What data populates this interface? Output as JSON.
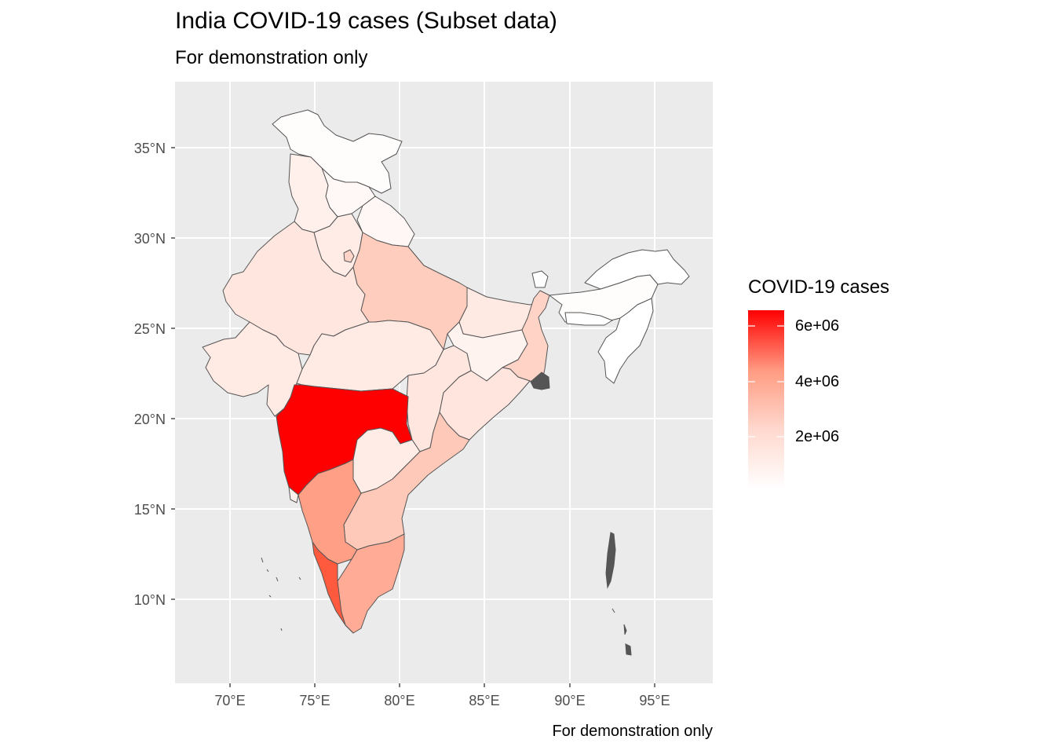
{
  "title": "India COVID-19 cases (Subset data)",
  "subtitle": "For demonstration only",
  "caption": "For demonstration only",
  "legend": {
    "title": "COVID-19 cases",
    "labels": [
      "6e+06",
      "4e+06",
      "2e+06"
    ],
    "low_color": "#ffffff",
    "high_color": "#ff0000"
  },
  "axes": {
    "x_ticks": [
      "70°E",
      "75°E",
      "80°E",
      "85°E",
      "90°E",
      "95°E"
    ],
    "y_ticks": [
      "35°N",
      "30°N",
      "25°N",
      "20°N",
      "15°N",
      "10°N"
    ],
    "panel_color": "#ebebeb",
    "grid_color": "#ffffff"
  },
  "chart_data": {
    "type": "choropleth",
    "title": "India COVID-19 cases (Subset data)",
    "subtitle": "For demonstration only",
    "xlim": [
      66.8,
      98.4
    ],
    "ylim": [
      5.2,
      38.6
    ],
    "fill_scale": {
      "name": "COVID-19 cases",
      "min": 0,
      "max": 6500000,
      "breaks": [
        2000000,
        4000000,
        6000000
      ]
    },
    "regions": [
      {
        "name": "Maharashtra",
        "value": 6400000
      },
      {
        "name": "Kerala",
        "value": 4800000
      },
      {
        "name": "Karnataka",
        "value": 2850000
      },
      {
        "name": "Tamil Nadu",
        "value": 2500000
      },
      {
        "name": "Andhra Pradesh",
        "value": 1950000
      },
      {
        "name": "Uttar Pradesh",
        "value": 1700000
      },
      {
        "name": "West Bengal",
        "value": 1540000
      },
      {
        "name": "Delhi",
        "value": 1440000
      },
      {
        "name": "Chhattisgarh",
        "value": 1000000
      },
      {
        "name": "Rajasthan",
        "value": 950000
      },
      {
        "name": "Gujarat",
        "value": 820000
      },
      {
        "name": "Madhya Pradesh",
        "value": 790000
      },
      {
        "name": "Odisha",
        "value": 980000
      },
      {
        "name": "Haryana",
        "value": 770000
      },
      {
        "name": "Bihar",
        "value": 720000
      },
      {
        "name": "Telangana",
        "value": 650000
      },
      {
        "name": "Punjab",
        "value": 600000
      },
      {
        "name": "Jharkhand",
        "value": 350000
      },
      {
        "name": "Uttarakhand",
        "value": 340000
      },
      {
        "name": "Jammu and Kashmir",
        "value": 320000
      },
      {
        "name": "Himachal Pradesh",
        "value": 210000
      },
      {
        "name": "Goa",
        "value": 170000
      },
      {
        "name": "Assam",
        "value": 580000
      },
      {
        "name": "Northeast states",
        "value": 80000
      }
    ]
  }
}
